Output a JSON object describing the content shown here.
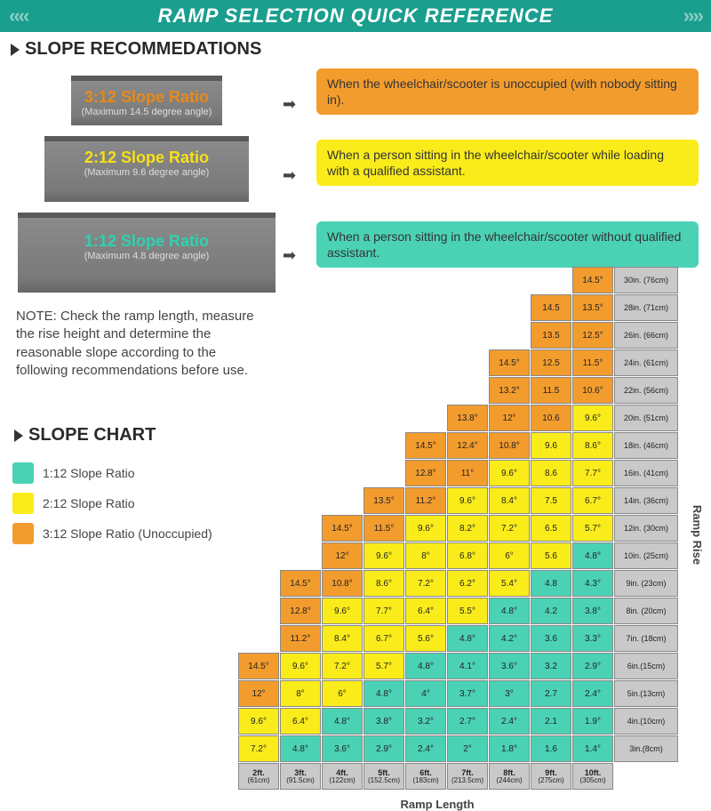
{
  "header": {
    "title": "RAMP SELECTION QUICK REFERENCE"
  },
  "recommendations": {
    "heading": "SLOPE RECOMMEDATIONS",
    "tiers": [
      {
        "ratio": "3:12 Slope Ratio",
        "sub": "(Maximum 14.5 degree angle)",
        "ratio_color": "#e88a1a"
      },
      {
        "ratio": "2:12 Slope Ratio",
        "sub": "(Maximum 9.6 degree angle)",
        "ratio_color": "#f7e018"
      },
      {
        "ratio": "1:12 Slope Ratio",
        "sub": "(Maximum 4.8 degree angle)",
        "ratio_color": "#2ed2b0"
      }
    ],
    "descs": [
      {
        "text": "When the wheelchair/scooter is unoccupied\n(with nobody sitting in).",
        "bg": "#f39c2e"
      },
      {
        "text": "When a person sitting in the wheelchair/scooter while loading with a qualified assistant.",
        "bg": "#faec1a"
      },
      {
        "text": "When a person sitting in the wheelchair/scooter without qualified assistant.",
        "bg": "#4bd2b5"
      }
    ]
  },
  "note": "NOTE: Check the ramp length, measure the rise height and determine the reasonable slope according to the following recommendations before use.",
  "slope_chart_heading": "SLOPE CHART",
  "legend": [
    {
      "label": "1:12 Slope Ratio",
      "color": "#4bd2b5"
    },
    {
      "label": "2:12 Slope Ratio",
      "color": "#faec1a"
    },
    {
      "label": "3:12 Slope Ratio (Unoccupied)",
      "color": "#f39c2e"
    }
  ],
  "chart": {
    "axis_x": "Ramp Length",
    "axis_y": "Ramp Rise",
    "colors": {
      "1": "#4bd2b5",
      "2": "#faec1a",
      "3": "#f39c2e",
      "lab": "#c9c9c9"
    },
    "columns": [
      {
        "l1": "2ft.",
        "l2": "(61cm)"
      },
      {
        "l1": "3ft.",
        "l2": "(91.5cm)"
      },
      {
        "l1": "4ft.",
        "l2": "(122cm)"
      },
      {
        "l1": "5ft.",
        "l2": "(152.5cm)"
      },
      {
        "l1": "6ft.",
        "l2": "(183cm)"
      },
      {
        "l1": "7ft.",
        "l2": "(213.5cm)"
      },
      {
        "l1": "8ft.",
        "l2": "(244cm)"
      },
      {
        "l1": "9ft.",
        "l2": "(275cm)"
      },
      {
        "l1": "10ft.",
        "l2": "(305cm)"
      }
    ],
    "rows": [
      {
        "rise": "30in. (76cm)",
        "cells": [
          null,
          null,
          null,
          null,
          null,
          null,
          null,
          null,
          {
            "v": "14.5°",
            "c": 3
          }
        ]
      },
      {
        "rise": "28in. (71cm)",
        "cells": [
          null,
          null,
          null,
          null,
          null,
          null,
          null,
          {
            "v": "14.5",
            "c": 3
          },
          {
            "v": "13.5°",
            "c": 3
          }
        ]
      },
      {
        "rise": "26in. (66cm)",
        "cells": [
          null,
          null,
          null,
          null,
          null,
          null,
          null,
          {
            "v": "13.5",
            "c": 3
          },
          {
            "v": "12.5°",
            "c": 3
          }
        ]
      },
      {
        "rise": "24in. (61cm)",
        "cells": [
          null,
          null,
          null,
          null,
          null,
          null,
          {
            "v": "14.5°",
            "c": 3
          },
          {
            "v": "12.5",
            "c": 3
          },
          {
            "v": "11.5°",
            "c": 3
          }
        ]
      },
      {
        "rise": "22in. (56cm)",
        "cells": [
          null,
          null,
          null,
          null,
          null,
          null,
          {
            "v": "13.2°",
            "c": 3
          },
          {
            "v": "11.5",
            "c": 3
          },
          {
            "v": "10.6°",
            "c": 3
          }
        ]
      },
      {
        "rise": "20in. (51cm)",
        "cells": [
          null,
          null,
          null,
          null,
          null,
          {
            "v": "13.8°",
            "c": 3
          },
          {
            "v": "12°",
            "c": 3
          },
          {
            "v": "10.6",
            "c": 3
          },
          {
            "v": "9.6°",
            "c": 2
          }
        ]
      },
      {
        "rise": "18in. (46cm)",
        "cells": [
          null,
          null,
          null,
          null,
          {
            "v": "14.5°",
            "c": 3
          },
          {
            "v": "12.4°",
            "c": 3
          },
          {
            "v": "10.8°",
            "c": 3
          },
          {
            "v": "9.6",
            "c": 2
          },
          {
            "v": "8.6°",
            "c": 2
          }
        ]
      },
      {
        "rise": "16in. (41cm)",
        "cells": [
          null,
          null,
          null,
          null,
          {
            "v": "12.8°",
            "c": 3
          },
          {
            "v": "11°",
            "c": 3
          },
          {
            "v": "9.6°",
            "c": 2
          },
          {
            "v": "8.6",
            "c": 2
          },
          {
            "v": "7.7°",
            "c": 2
          }
        ]
      },
      {
        "rise": "14in. (36cm)",
        "cells": [
          null,
          null,
          null,
          {
            "v": "13.5°",
            "c": 3
          },
          {
            "v": "11.2°",
            "c": 3
          },
          {
            "v": "9.6°",
            "c": 2
          },
          {
            "v": "8.4°",
            "c": 2
          },
          {
            "v": "7.5",
            "c": 2
          },
          {
            "v": "6.7°",
            "c": 2
          }
        ]
      },
      {
        "rise": "12in. (30cm)",
        "cells": [
          null,
          null,
          {
            "v": "14.5°",
            "c": 3
          },
          {
            "v": "11.5°",
            "c": 3
          },
          {
            "v": "9.6°",
            "c": 2
          },
          {
            "v": "8.2°",
            "c": 2
          },
          {
            "v": "7.2°",
            "c": 2
          },
          {
            "v": "6.5",
            "c": 2
          },
          {
            "v": "5.7°",
            "c": 2
          }
        ]
      },
      {
        "rise": "10in. (25cm)",
        "cells": [
          null,
          null,
          {
            "v": "12°",
            "c": 3
          },
          {
            "v": "9.6°",
            "c": 2
          },
          {
            "v": "8°",
            "c": 2
          },
          {
            "v": "6.8°",
            "c": 2
          },
          {
            "v": "6°",
            "c": 2
          },
          {
            "v": "5.6",
            "c": 2
          },
          {
            "v": "4.8°",
            "c": 1
          }
        ]
      },
      {
        "rise": "9in. (23cm)",
        "cells": [
          null,
          {
            "v": "14.5°",
            "c": 3
          },
          {
            "v": "10.8°",
            "c": 3
          },
          {
            "v": "8.6°",
            "c": 2
          },
          {
            "v": "7.2°",
            "c": 2
          },
          {
            "v": "6.2°",
            "c": 2
          },
          {
            "v": "5.4°",
            "c": 2
          },
          {
            "v": "4.8",
            "c": 1
          },
          {
            "v": "4.3°",
            "c": 1
          }
        ]
      },
      {
        "rise": "8in. (20cm)",
        "cells": [
          null,
          {
            "v": "12.8°",
            "c": 3
          },
          {
            "v": "9.6°",
            "c": 2
          },
          {
            "v": "7.7°",
            "c": 2
          },
          {
            "v": "6.4°",
            "c": 2
          },
          {
            "v": "5.5°",
            "c": 2
          },
          {
            "v": "4.8°",
            "c": 1
          },
          {
            "v": "4.2",
            "c": 1
          },
          {
            "v": "3.8°",
            "c": 1
          }
        ]
      },
      {
        "rise": "7in. (18cm)",
        "cells": [
          null,
          {
            "v": "11.2°",
            "c": 3
          },
          {
            "v": "8.4°",
            "c": 2
          },
          {
            "v": "6.7°",
            "c": 2
          },
          {
            "v": "5.6°",
            "c": 2
          },
          {
            "v": "4.8°",
            "c": 1
          },
          {
            "v": "4.2°",
            "c": 1
          },
          {
            "v": "3.6",
            "c": 1
          },
          {
            "v": "3.3°",
            "c": 1
          }
        ]
      },
      {
        "rise": "6in.(15cm)",
        "cells": [
          {
            "v": "14.5°",
            "c": 3
          },
          {
            "v": "9.6°",
            "c": 2
          },
          {
            "v": "7.2°",
            "c": 2
          },
          {
            "v": "5.7°",
            "c": 2
          },
          {
            "v": "4.8°",
            "c": 1
          },
          {
            "v": "4.1°",
            "c": 1
          },
          {
            "v": "3.6°",
            "c": 1
          },
          {
            "v": "3.2",
            "c": 1
          },
          {
            "v": "2.9°",
            "c": 1
          }
        ]
      },
      {
        "rise": "5in.(13cm)",
        "cells": [
          {
            "v": "12°",
            "c": 3
          },
          {
            "v": "8°",
            "c": 2
          },
          {
            "v": "6°",
            "c": 2
          },
          {
            "v": "4.8°",
            "c": 1
          },
          {
            "v": "4°",
            "c": 1
          },
          {
            "v": "3.7°",
            "c": 1
          },
          {
            "v": "3°",
            "c": 1
          },
          {
            "v": "2.7",
            "c": 1
          },
          {
            "v": "2.4°",
            "c": 1
          }
        ]
      },
      {
        "rise": "4in.(10cm)",
        "cells": [
          {
            "v": "9.6°",
            "c": 2
          },
          {
            "v": "6.4°",
            "c": 2
          },
          {
            "v": "4.8°",
            "c": 1
          },
          {
            "v": "3.8°",
            "c": 1
          },
          {
            "v": "3.2°",
            "c": 1
          },
          {
            "v": "2.7°",
            "c": 1
          },
          {
            "v": "2.4°",
            "c": 1
          },
          {
            "v": "2.1",
            "c": 1
          },
          {
            "v": "1.9°",
            "c": 1
          }
        ]
      },
      {
        "rise": "3in.(8cm)",
        "cells": [
          {
            "v": "7.2°",
            "c": 2
          },
          {
            "v": "4.8°",
            "c": 1
          },
          {
            "v": "3.6°",
            "c": 1
          },
          {
            "v": "2.9°",
            "c": 1
          },
          {
            "v": "2.4°",
            "c": 1
          },
          {
            "v": "2°",
            "c": 1
          },
          {
            "v": "1.8°",
            "c": 1
          },
          {
            "v": "1.6",
            "c": 1
          },
          {
            "v": "1.4°",
            "c": 1
          }
        ]
      }
    ]
  }
}
